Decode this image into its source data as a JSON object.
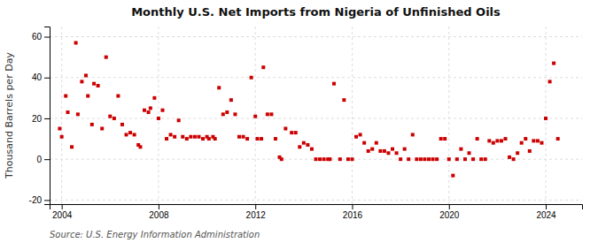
{
  "chart_data": {
    "type": "scatter",
    "title": "Monthly U.S. Net Imports from Nigeria of Unfinished Oils",
    "y_label": "Thousand Barrels per Day",
    "source": "Source: U.S. Energy Information Administration",
    "color": "#cc0000",
    "marker": "square",
    "grid": true,
    "xlim": [
      2003.5,
      2025.5
    ],
    "xticks": [
      2004,
      2008,
      2012,
      2016,
      2020,
      2024
    ],
    "ylim": [
      -22,
      65
    ],
    "yticks": [
      -20,
      0,
      20,
      40,
      60
    ],
    "x": [
      2003.917,
      2004.0,
      2004.167,
      2004.25,
      2004.417,
      2004.583,
      2004.667,
      2004.833,
      2005.0,
      2005.083,
      2005.25,
      2005.333,
      2005.5,
      2005.667,
      2005.833,
      2006.0,
      2006.167,
      2006.333,
      2006.5,
      2006.667,
      2006.833,
      2007.0,
      2007.167,
      2007.25,
      2007.417,
      2007.583,
      2007.667,
      2007.833,
      2008.0,
      2008.167,
      2008.333,
      2008.5,
      2008.667,
      2008.833,
      2009.0,
      2009.167,
      2009.333,
      2009.5,
      2009.667,
      2009.833,
      2010.0,
      2010.083,
      2010.25,
      2010.333,
      2010.5,
      2010.667,
      2010.833,
      2011.0,
      2011.167,
      2011.333,
      2011.5,
      2011.667,
      2011.833,
      2012.0,
      2012.083,
      2012.25,
      2012.333,
      2012.5,
      2012.667,
      2012.833,
      2013.0,
      2013.083,
      2013.25,
      2013.5,
      2013.667,
      2013.833,
      2014.0,
      2014.167,
      2014.333,
      2014.5,
      2014.667,
      2014.833,
      2015.0,
      2015.083,
      2015.25,
      2015.5,
      2015.667,
      2015.833,
      2016.0,
      2016.167,
      2016.333,
      2016.5,
      2016.667,
      2016.833,
      2017.0,
      2017.167,
      2017.333,
      2017.5,
      2017.667,
      2017.833,
      2018.0,
      2018.167,
      2018.333,
      2018.5,
      2018.667,
      2018.833,
      2019.0,
      2019.167,
      2019.333,
      2019.5,
      2019.667,
      2019.833,
      2020.0,
      2020.167,
      2020.333,
      2020.5,
      2020.667,
      2020.833,
      2021.0,
      2021.167,
      2021.333,
      2021.5,
      2021.667,
      2021.833,
      2022.0,
      2022.167,
      2022.333,
      2022.5,
      2022.667,
      2022.833,
      2023.0,
      2023.167,
      2023.333,
      2023.5,
      2023.667,
      2023.833,
      2024.0,
      2024.167,
      2024.333,
      2024.5
    ],
    "values": [
      15,
      11,
      31,
      23,
      6,
      57,
      22,
      38,
      41,
      31,
      17,
      37,
      36,
      15,
      50,
      21,
      20,
      31,
      17,
      12,
      13,
      12,
      7,
      6,
      24,
      23,
      25,
      30,
      20,
      24,
      10,
      12,
      11,
      19,
      11,
      10,
      11,
      11,
      11,
      10,
      11,
      10,
      11,
      10,
      35,
      22,
      23,
      29,
      22,
      11,
      11,
      10,
      40,
      21,
      10,
      10,
      45,
      22,
      22,
      10,
      1,
      0,
      15,
      13,
      13,
      6,
      8,
      7,
      5,
      0,
      0,
      0,
      0,
      0,
      37,
      0,
      29,
      0,
      0,
      11,
      12,
      8,
      4,
      5,
      8,
      4,
      4,
      3,
      5,
      3,
      0,
      5,
      0,
      12,
      0,
      0,
      0,
      0,
      0,
      0,
      10,
      10,
      0,
      -8,
      0,
      5,
      0,
      3,
      0,
      10,
      0,
      0,
      9,
      8,
      9,
      9,
      10,
      1,
      0,
      3,
      8,
      10,
      4,
      9,
      9,
      8,
      20,
      38,
      47,
      10
    ]
  }
}
